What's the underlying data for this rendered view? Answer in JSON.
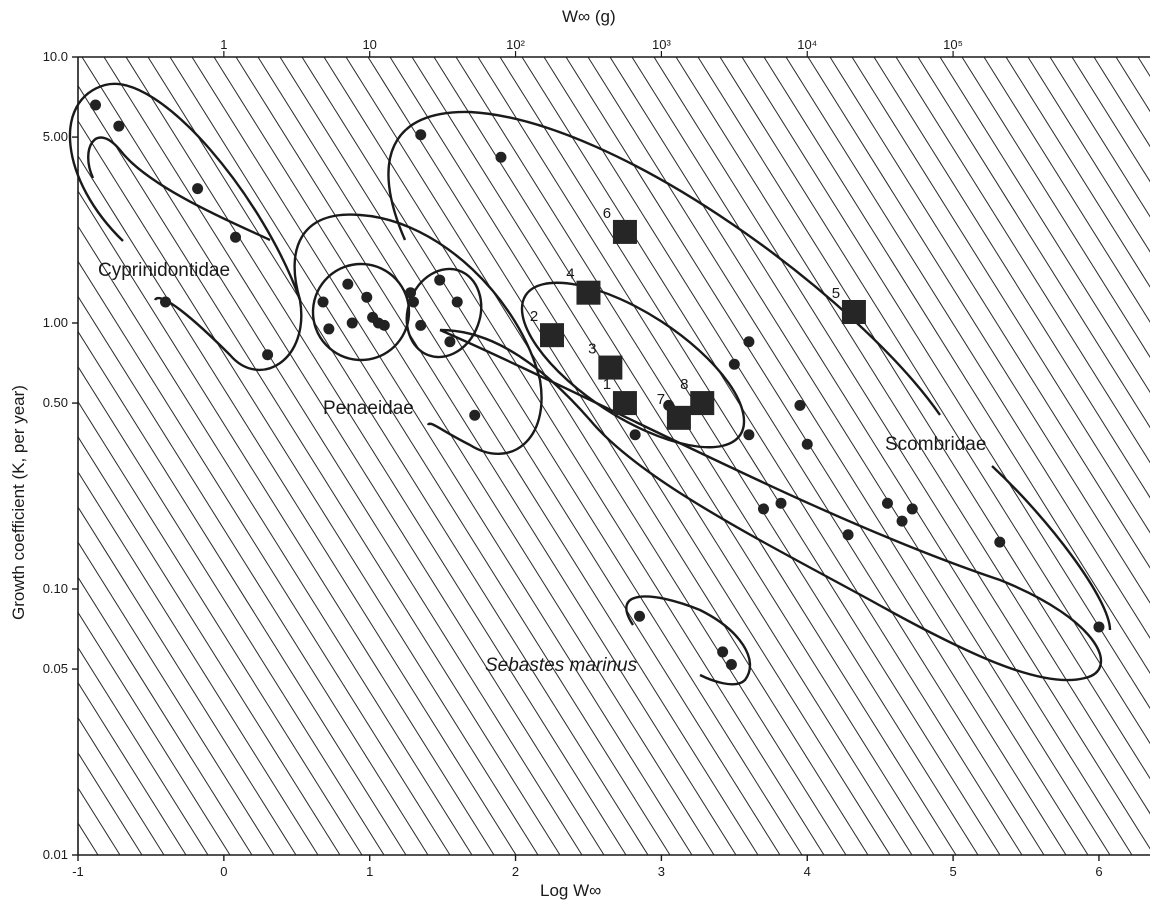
{
  "chart_data": {
    "type": "scatter",
    "xlabel": "Log W∞",
    "x2label": "W∞ (g)",
    "ylabel": "Growth coefficient (K, per year)",
    "x_ticks": [
      "-1",
      "0",
      "1",
      "2",
      "3",
      "4",
      "5",
      "6"
    ],
    "x2_ticks": [
      "1",
      "10",
      "10²",
      "10³",
      "10⁴",
      "10⁵"
    ],
    "y_ticks": [
      "10.0",
      "5.00",
      "1.00",
      "0.50",
      "0.10",
      "0.05",
      "0.01"
    ],
    "y_scale": "log",
    "xlim": [
      -1,
      6.35
    ],
    "ylim": [
      0.01,
      10.0
    ],
    "background": "diagonal hatching",
    "groups": [
      {
        "name": "Cyprinidontidae",
        "points": [
          [
            -0.88,
            6.6
          ],
          [
            -0.72,
            5.5
          ],
          [
            -0.18,
            3.2
          ],
          [
            0.08,
            2.1
          ],
          [
            -0.4,
            1.2
          ],
          [
            0.3,
            0.76
          ]
        ]
      },
      {
        "name": "Penaeidae",
        "points": [
          [
            0.68,
            1.2
          ],
          [
            0.85,
            1.4
          ],
          [
            0.98,
            1.25
          ],
          [
            1.02,
            1.05
          ],
          [
            1.06,
            1.0
          ],
          [
            0.72,
            0.95
          ],
          [
            0.88,
            1.0
          ],
          [
            1.1,
            0.98
          ],
          [
            1.3,
            1.2
          ],
          [
            1.35,
            0.98
          ],
          [
            1.48,
            1.45
          ],
          [
            1.28,
            1.3
          ],
          [
            1.6,
            1.2
          ],
          [
            1.55,
            0.85
          ],
          [
            1.72,
            0.45
          ]
        ]
      },
      {
        "name": "Scombridae",
        "points": [
          [
            1.35,
            5.1
          ],
          [
            1.9,
            4.2
          ],
          [
            3.5,
            0.7
          ],
          [
            3.6,
            0.85
          ],
          [
            3.6,
            0.38
          ],
          [
            3.7,
            0.2
          ],
          [
            3.82,
            0.21
          ],
          [
            3.95,
            0.49
          ],
          [
            4.0,
            0.35
          ],
          [
            4.28,
            0.16
          ],
          [
            4.55,
            0.21
          ],
          [
            4.65,
            0.18
          ],
          [
            4.72,
            0.2
          ],
          [
            5.32,
            0.15
          ],
          [
            6.0,
            0.072
          ],
          [
            3.05,
            0.49
          ],
          [
            2.82,
            0.38
          ]
        ]
      },
      {
        "name": "Sebastes marinus",
        "points": [
          [
            2.85,
            0.079
          ],
          [
            3.42,
            0.058
          ],
          [
            3.48,
            0.052
          ]
        ]
      }
    ],
    "numbered_squares": [
      {
        "label": "1",
        "x": 2.75,
        "y": 0.5
      },
      {
        "label": "2",
        "x": 2.25,
        "y": 0.9
      },
      {
        "label": "3",
        "x": 2.65,
        "y": 0.68
      },
      {
        "label": "4",
        "x": 2.5,
        "y": 1.3
      },
      {
        "label": "5",
        "x": 4.32,
        "y": 1.1
      },
      {
        "label": "6",
        "x": 2.75,
        "y": 2.2
      },
      {
        "label": "7",
        "x": 3.12,
        "y": 0.44
      },
      {
        "label": "8",
        "x": 3.28,
        "y": 0.5
      }
    ],
    "grid": false
  }
}
